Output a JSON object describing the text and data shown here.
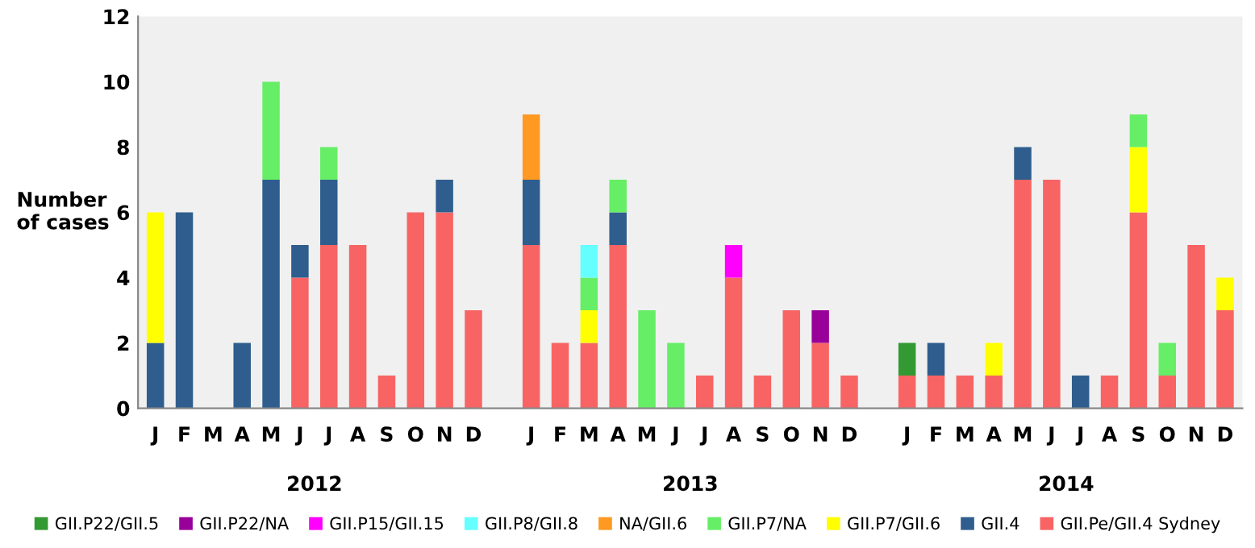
{
  "chart_data": {
    "type": "bar",
    "stacked": true,
    "ylabel": "Number\nof cases",
    "categories": [
      "J",
      "F",
      "M",
      "A",
      "M",
      "J",
      "J",
      "A",
      "S",
      "O",
      "N",
      "D",
      null,
      "J",
      "F",
      "M",
      "A",
      "M",
      "J",
      "J",
      "A",
      "S",
      "O",
      "N",
      "D",
      null,
      "J",
      "F",
      "M",
      "A",
      "M",
      "J",
      "J",
      "A",
      "S",
      "O",
      "N",
      "D"
    ],
    "series": [
      {
        "name": "GII.Pe/GII.4 Sydney",
        "color": "#f86464",
        "values": [
          0,
          0,
          0,
          0,
          0,
          4,
          5,
          5,
          1,
          6,
          6,
          3,
          null,
          5,
          2,
          2,
          5,
          0,
          0,
          1,
          4,
          1,
          3,
          2,
          1,
          null,
          1,
          1,
          1,
          1,
          7,
          7,
          0,
          1,
          6,
          1,
          5,
          3
        ]
      },
      {
        "name": "GII.4",
        "color": "#2f5e8e",
        "values": [
          2,
          6,
          0,
          2,
          7,
          1,
          2,
          0,
          0,
          0,
          1,
          0,
          null,
          2,
          0,
          0,
          1,
          0,
          0,
          0,
          0,
          0,
          0,
          0,
          0,
          null,
          0,
          1,
          0,
          0,
          1,
          0,
          1,
          0,
          0,
          0,
          0,
          0
        ]
      },
      {
        "name": "GII.P7/GII.6",
        "color": "#ffff00",
        "values": [
          4,
          0,
          0,
          0,
          0,
          0,
          0,
          0,
          0,
          0,
          0,
          0,
          null,
          0,
          0,
          1,
          0,
          0,
          0,
          0,
          0,
          0,
          0,
          0,
          0,
          null,
          0,
          0,
          0,
          1,
          0,
          0,
          0,
          0,
          2,
          0,
          0,
          1
        ]
      },
      {
        "name": "GII.P7/NA",
        "color": "#66ee66",
        "values": [
          0,
          0,
          0,
          0,
          3,
          0,
          1,
          0,
          0,
          0,
          0,
          0,
          null,
          0,
          0,
          1,
          1,
          3,
          2,
          0,
          0,
          0,
          0,
          0,
          0,
          null,
          0,
          0,
          0,
          0,
          0,
          0,
          0,
          0,
          1,
          1,
          0,
          0
        ]
      },
      {
        "name": "NA/GII.6",
        "color": "#ff9922",
        "values": [
          0,
          0,
          0,
          0,
          0,
          0,
          0,
          0,
          0,
          0,
          0,
          0,
          null,
          2,
          0,
          0,
          0,
          0,
          0,
          0,
          0,
          0,
          0,
          0,
          0,
          null,
          0,
          0,
          0,
          0,
          0,
          0,
          0,
          0,
          0,
          0,
          0,
          0
        ]
      },
      {
        "name": "GII.P8/GII.8",
        "color": "#66ffff",
        "values": [
          0,
          0,
          0,
          0,
          0,
          0,
          0,
          0,
          0,
          0,
          0,
          0,
          null,
          0,
          0,
          1,
          0,
          0,
          0,
          0,
          0,
          0,
          0,
          0,
          0,
          null,
          0,
          0,
          0,
          0,
          0,
          0,
          0,
          0,
          0,
          0,
          0,
          0
        ]
      },
      {
        "name": "GII.P15/GII.15",
        "color": "#ff00ff",
        "values": [
          0,
          0,
          0,
          0,
          0,
          0,
          0,
          0,
          0,
          0,
          0,
          0,
          null,
          0,
          0,
          0,
          0,
          0,
          0,
          0,
          1,
          0,
          0,
          0,
          0,
          null,
          0,
          0,
          0,
          0,
          0,
          0,
          0,
          0,
          0,
          0,
          0,
          0
        ]
      },
      {
        "name": "GII.P22/NA",
        "color": "#990099",
        "values": [
          0,
          0,
          0,
          0,
          0,
          0,
          0,
          0,
          0,
          0,
          0,
          0,
          null,
          0,
          0,
          0,
          0,
          0,
          0,
          0,
          0,
          0,
          0,
          1,
          0,
          null,
          0,
          0,
          0,
          0,
          0,
          0,
          0,
          0,
          0,
          0,
          0,
          0
        ]
      },
      {
        "name": "GII.P22/GII.5",
        "color": "#339933",
        "values": [
          0,
          0,
          0,
          0,
          0,
          0,
          0,
          0,
          0,
          0,
          0,
          0,
          null,
          0,
          0,
          0,
          0,
          0,
          0,
          0,
          0,
          0,
          0,
          0,
          0,
          null,
          1,
          0,
          0,
          0,
          0,
          0,
          0,
          0,
          0,
          0,
          0,
          0
        ]
      }
    ],
    "ylim": [
      0,
      12
    ],
    "yticks": [
      0,
      2,
      4,
      6,
      8,
      10,
      12
    ],
    "grid": false,
    "legend": "bottom",
    "annotations": [
      "2012",
      "2013",
      "2014"
    ]
  }
}
